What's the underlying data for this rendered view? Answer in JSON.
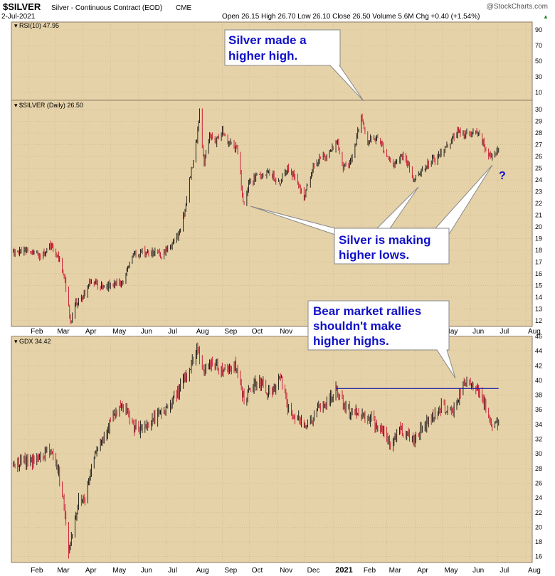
{
  "header": {
    "symbol": "$SILVER",
    "description": "Silver - Continuous Contract (EOD)",
    "exchange": "CME",
    "date": "2-Jul-2021",
    "watermark": "@StockCharts.com",
    "quote": "Open 26.15  High 26.70  Low 26.10  Close 26.50  Volume 5.6M  Chg +0.40 (+1.54%)",
    "quote_arrow": "▲"
  },
  "colors": {
    "panel_bg": "#e6d2a8",
    "grid": "#c9b084",
    "up_bar": "#111111",
    "down_bar": "#c8102e",
    "trend_line": "#1a1aa6",
    "annotation_text": "#1010c8"
  },
  "panels": {
    "rsi": {
      "label": "RSI(10) 47.95"
    },
    "silver": {
      "label": "$SILVER (Daily) 26.50"
    },
    "gdx": {
      "label": "GDX 34.42"
    }
  },
  "x_axis": {
    "months": [
      "Feb",
      "Mar",
      "Apr",
      "May",
      "Jun",
      "Jul",
      "Aug",
      "Sep",
      "Oct",
      "Nov",
      "Dec",
      "2021",
      "Feb",
      "Mar",
      "Apr",
      "May",
      "Jun",
      "Jul",
      "Aug"
    ],
    "silver_panel_months": [
      "Feb",
      "Mar",
      "Apr",
      "May",
      "Jun",
      "Jul",
      "Aug",
      "Sep",
      "Oct",
      "Nov",
      "Dec",
      "",
      "",
      "",
      "",
      "May",
      "Jun",
      "Jul",
      "Aug"
    ]
  },
  "annotations": {
    "higher_high": {
      "line1": "Silver made a",
      "line2": "higher high."
    },
    "higher_lows": {
      "line1": "Silver is making",
      "line2": "higher lows."
    },
    "bear_rallies": {
      "line1": "Bear market rallies",
      "line2": "shouldn't make",
      "line3": "higher highs."
    },
    "question": "?"
  },
  "chart_data": [
    {
      "type": "line",
      "name": "RSI(10)",
      "last_value": 47.95,
      "y_ticks": [
        10,
        30,
        50,
        70,
        90
      ],
      "ylim": [
        0,
        100
      ]
    },
    {
      "type": "ohlc",
      "title": "$SILVER (Daily)",
      "ylim": [
        11.5,
        30.8
      ],
      "y_ticks": [
        12,
        13,
        14,
        15,
        16,
        17,
        18,
        19,
        20,
        21,
        22,
        23,
        24,
        25,
        26,
        27,
        28,
        29,
        30
      ],
      "approx_path": [
        [
          "2020-01-15",
          17.9
        ],
        [
          "2020-02-01",
          17.8
        ],
        [
          "2020-02-15",
          17.6
        ],
        [
          "2020-02-24",
          18.5
        ],
        [
          "2020-03-06",
          17.2
        ],
        [
          "2020-03-12",
          15.5
        ],
        [
          "2020-03-18",
          12.0
        ],
        [
          "2020-03-24",
          13.4
        ],
        [
          "2020-04-01",
          14.0
        ],
        [
          "2020-04-10",
          15.4
        ],
        [
          "2020-04-20",
          14.8
        ],
        [
          "2020-05-01",
          15.0
        ],
        [
          "2020-05-15",
          15.2
        ],
        [
          "2020-05-25",
          17.5
        ],
        [
          "2020-06-05",
          17.9
        ],
        [
          "2020-06-15",
          17.8
        ],
        [
          "2020-06-25",
          17.6
        ],
        [
          "2020-07-07",
          18.4
        ],
        [
          "2020-07-15",
          19.4
        ],
        [
          "2020-07-22",
          21.5
        ],
        [
          "2020-07-27",
          24.0
        ],
        [
          "2020-08-04",
          27.5
        ],
        [
          "2020-08-07",
          29.7
        ],
        [
          "2020-08-12",
          25.5
        ],
        [
          "2020-08-18",
          27.6
        ],
        [
          "2020-08-25",
          27.3
        ],
        [
          "2020-09-01",
          28.2
        ],
        [
          "2020-09-10",
          27.0
        ],
        [
          "2020-09-17",
          26.8
        ],
        [
          "2020-09-21",
          24.5
        ],
        [
          "2020-09-24",
          22.0
        ],
        [
          "2020-10-01",
          23.8
        ],
        [
          "2020-10-15",
          24.5
        ],
        [
          "2020-10-25",
          24.5
        ],
        [
          "2020-11-03",
          23.8
        ],
        [
          "2020-11-10",
          25.0
        ],
        [
          "2020-11-20",
          24.3
        ],
        [
          "2020-11-30",
          22.5
        ],
        [
          "2020-12-08",
          24.8
        ],
        [
          "2020-12-18",
          25.8
        ],
        [
          "2020-12-28",
          26.3
        ],
        [
          "2021-01-06",
          27.3
        ],
        [
          "2021-01-12",
          25.0
        ],
        [
          "2021-01-22",
          25.8
        ],
        [
          "2021-02-01",
          29.5
        ],
        [
          "2021-02-08",
          27.3
        ],
        [
          "2021-02-20",
          27.6
        ],
        [
          "2021-02-26",
          26.5
        ],
        [
          "2021-03-08",
          25.3
        ],
        [
          "2021-03-18",
          26.2
        ],
        [
          "2021-03-31",
          24.1
        ],
        [
          "2021-04-12",
          25.2
        ],
        [
          "2021-04-25",
          25.9
        ],
        [
          "2021-05-05",
          26.8
        ],
        [
          "2021-05-18",
          28.1
        ],
        [
          "2021-05-28",
          27.9
        ],
        [
          "2021-06-08",
          28.0
        ],
        [
          "2021-06-15",
          27.2
        ],
        [
          "2021-06-20",
          26.0
        ],
        [
          "2021-07-02",
          26.5
        ]
      ]
    },
    {
      "type": "ohlc",
      "title": "GDX",
      "last_value": 34.42,
      "ylim": [
        15.2,
        46.0
      ],
      "y_ticks": [
        16,
        18,
        20,
        22,
        24,
        26,
        28,
        30,
        32,
        34,
        36,
        38,
        40,
        42,
        44,
        46
      ],
      "trend_line": {
        "from": "2021-01-04",
        "to": "2021-07-02",
        "value": 38.9
      },
      "approx_path": [
        [
          "2020-01-15",
          28.8
        ],
        [
          "2020-02-01",
          28.9
        ],
        [
          "2020-02-15",
          29.5
        ],
        [
          "2020-02-24",
          30.8
        ],
        [
          "2020-03-03",
          28.5
        ],
        [
          "2020-03-10",
          24.0
        ],
        [
          "2020-03-16",
          16.5
        ],
        [
          "2020-03-20",
          19.5
        ],
        [
          "2020-03-27",
          23.5
        ],
        [
          "2020-04-03",
          24.0
        ],
        [
          "2020-04-14",
          30.5
        ],
        [
          "2020-04-22",
          32.0
        ],
        [
          "2020-05-01",
          34.5
        ],
        [
          "2020-05-15",
          36.5
        ],
        [
          "2020-05-25",
          34.0
        ],
        [
          "2020-06-01",
          33.0
        ],
        [
          "2020-06-15",
          34.5
        ],
        [
          "2020-07-01",
          36.0
        ],
        [
          "2020-07-15",
          38.5
        ],
        [
          "2020-07-25",
          41.0
        ],
        [
          "2020-08-05",
          44.5
        ],
        [
          "2020-08-12",
          41.0
        ],
        [
          "2020-08-20",
          42.5
        ],
        [
          "2020-09-01",
          41.5
        ],
        [
          "2020-09-15",
          42.0
        ],
        [
          "2020-09-25",
          37.5
        ],
        [
          "2020-10-10",
          40.0
        ],
        [
          "2020-10-25",
          38.0
        ],
        [
          "2020-11-05",
          40.5
        ],
        [
          "2020-11-12",
          36.0
        ],
        [
          "2020-11-25",
          34.5
        ],
        [
          "2020-12-05",
          34.0
        ],
        [
          "2020-12-15",
          36.0
        ],
        [
          "2020-12-30",
          37.5
        ],
        [
          "2021-01-05",
          38.8
        ],
        [
          "2021-01-15",
          36.0
        ],
        [
          "2021-01-29",
          35.5
        ],
        [
          "2021-02-10",
          35.0
        ],
        [
          "2021-02-25",
          33.0
        ],
        [
          "2021-03-05",
          31.0
        ],
        [
          "2021-03-15",
          33.5
        ],
        [
          "2021-03-31",
          32.0
        ],
        [
          "2021-04-15",
          34.5
        ],
        [
          "2021-05-01",
          36.5
        ],
        [
          "2021-05-12",
          35.5
        ],
        [
          "2021-05-25",
          39.5
        ],
        [
          "2021-06-04",
          39.6
        ],
        [
          "2021-06-12",
          38.5
        ],
        [
          "2021-06-18",
          36.0
        ],
        [
          "2021-06-25",
          34.0
        ],
        [
          "2021-07-02",
          34.4
        ]
      ]
    }
  ]
}
